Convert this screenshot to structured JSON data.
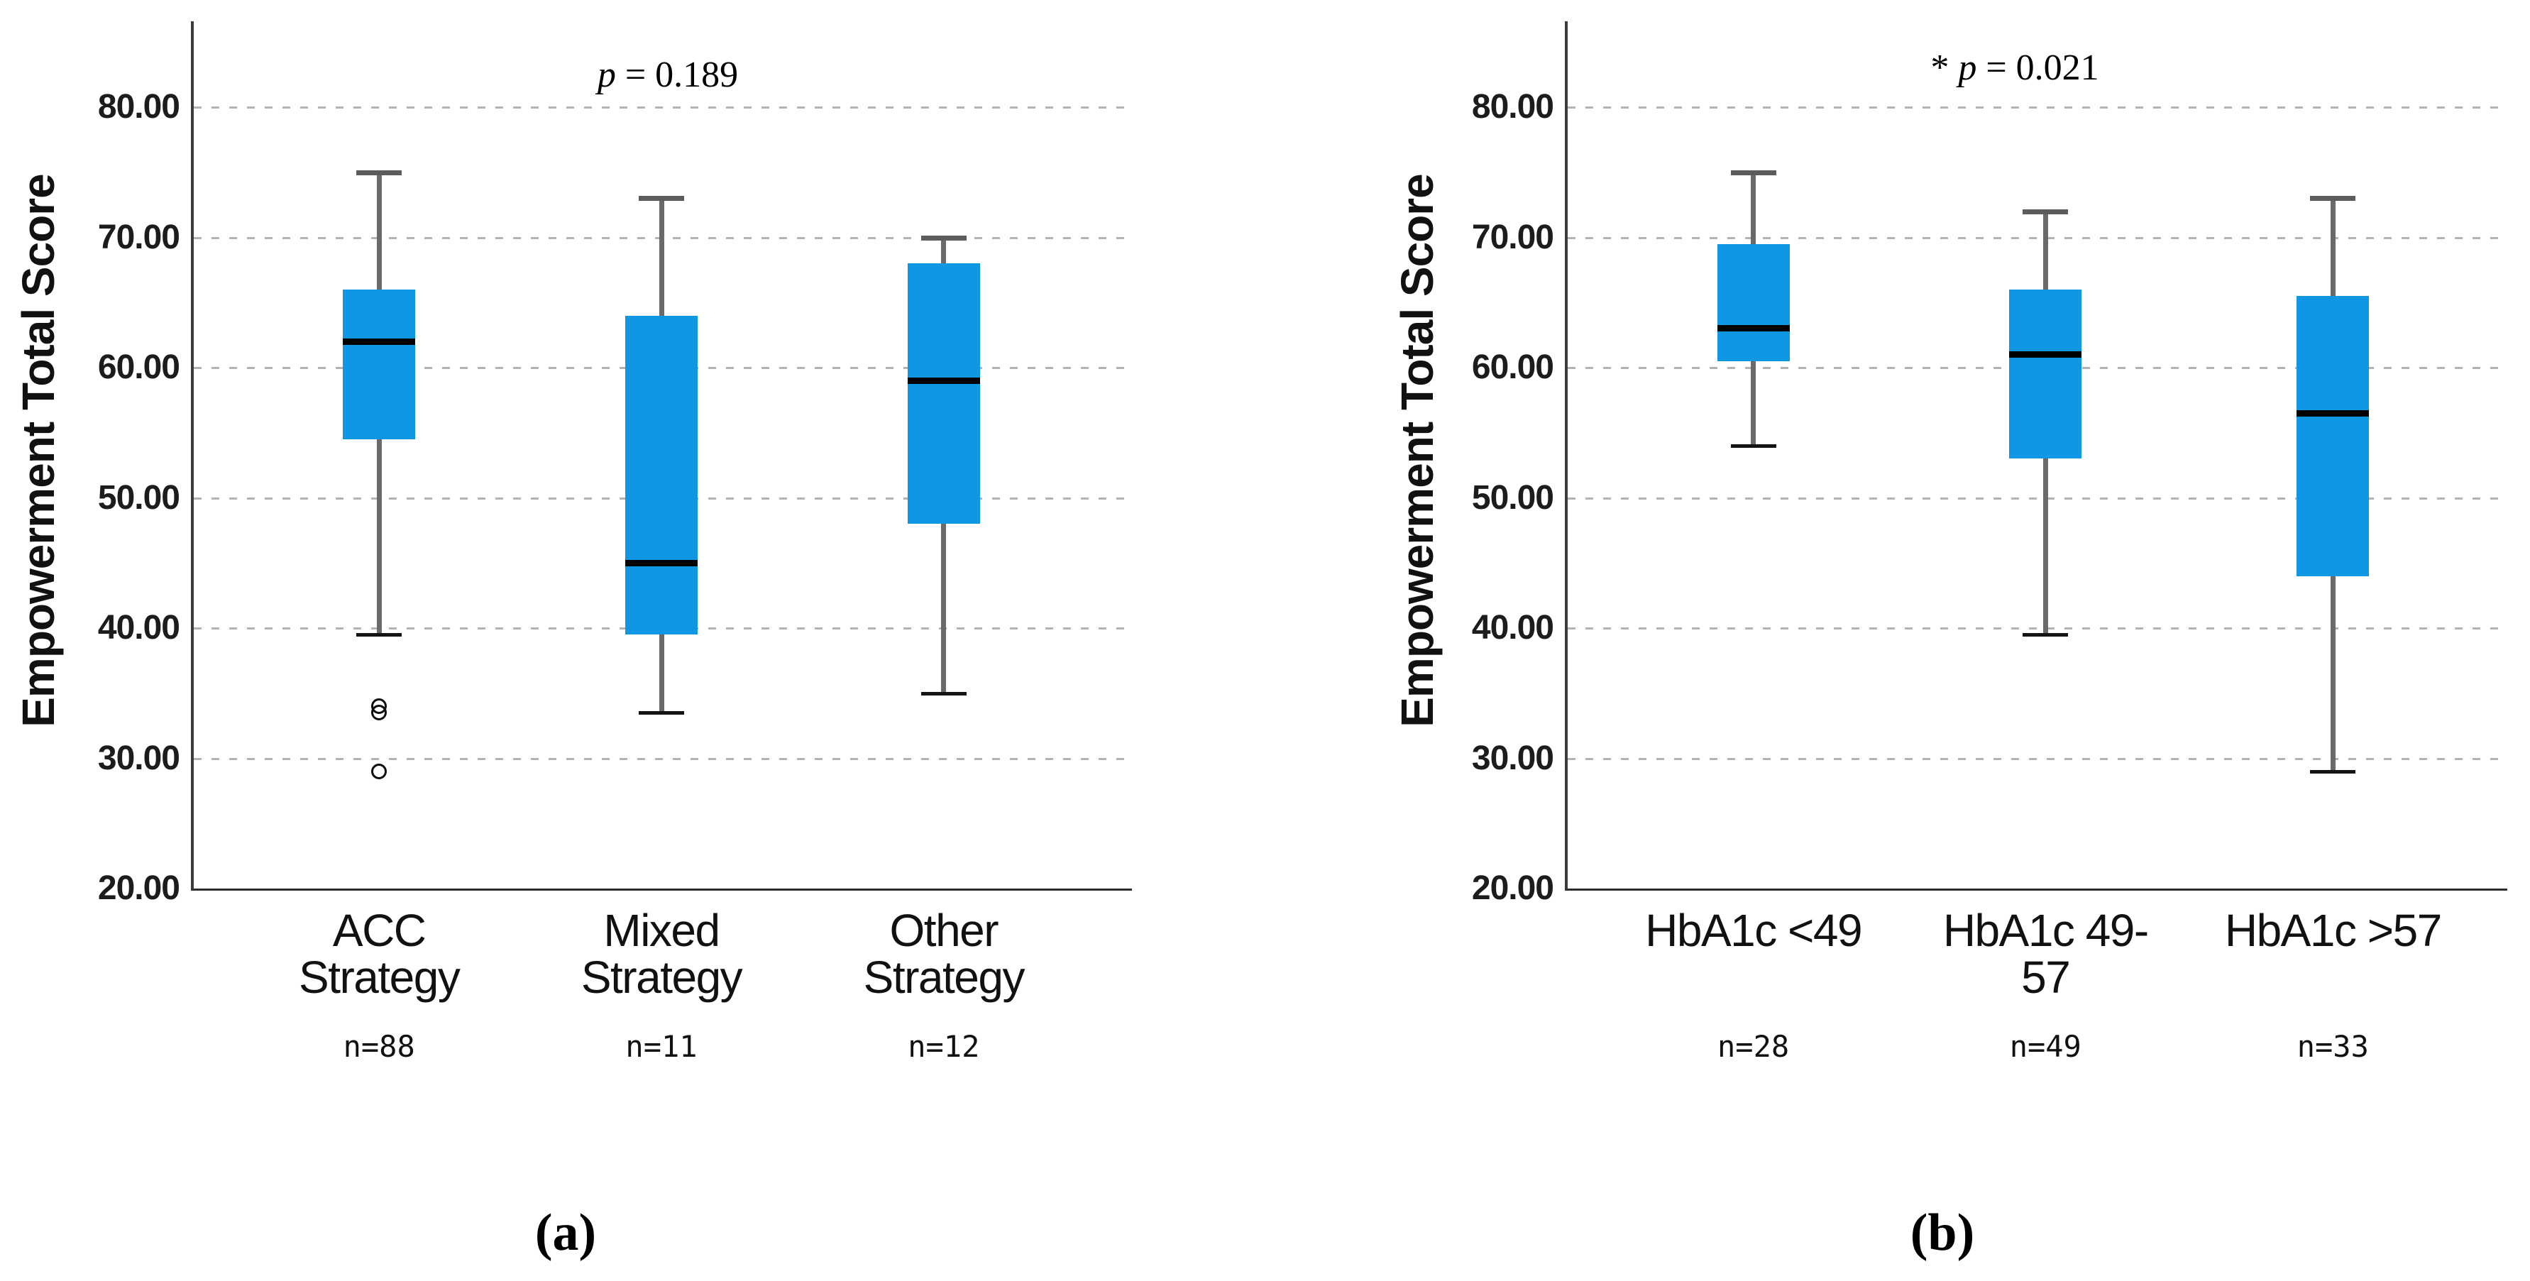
{
  "figure": {
    "captions": {
      "a": "(a)",
      "b": "(b)"
    }
  },
  "colors": {
    "box_fill": "#0f97e3",
    "median": "#000000",
    "whisker_stem": "#6a6a6a",
    "whisker_cap_top": "#5c5c5c",
    "whisker_cap_bottom": "#141414",
    "gridline": "#b3b3b3",
    "axis": "#3c3c3c",
    "text": "#141414"
  },
  "chart_data": [
    {
      "type": "box",
      "panel": "a",
      "ylabel": "Empowerment Total Score",
      "annotation": {
        "star": "",
        "p": "p",
        "rest": " = 0.189"
      },
      "ylim": [
        20,
        86
      ],
      "grid": "horizontal-dashed",
      "legend": null,
      "yticks": [
        {
          "value": 80,
          "label": "80.00"
        },
        {
          "value": 70,
          "label": "70.00"
        },
        {
          "value": 60,
          "label": "60.00"
        },
        {
          "value": 50,
          "label": "50.00"
        },
        {
          "value": 40,
          "label": "40.00"
        },
        {
          "value": 30,
          "label": "30.00"
        },
        {
          "value": 20,
          "label": "20.00"
        }
      ],
      "categories": [
        "ACC Strategy",
        "Mixed Strategy",
        "Other Strategy"
      ],
      "sample_sizes": [
        "n=88",
        "n=11",
        "n=12"
      ],
      "boxes": [
        {
          "category": "ACC Strategy",
          "whisker_low": 39.5,
          "q1": 54.5,
          "median": 62,
          "q3": 66,
          "whisker_high": 75,
          "outliers": [
            34,
            33.5,
            29
          ]
        },
        {
          "category": "Mixed Strategy",
          "whisker_low": 33.5,
          "q1": 39.5,
          "median": 45,
          "q3": 64,
          "whisker_high": 73,
          "outliers": []
        },
        {
          "category": "Other Strategy",
          "whisker_low": 35,
          "q1": 48,
          "median": 59,
          "q3": 68,
          "whisker_high": 70,
          "outliers": []
        }
      ]
    },
    {
      "type": "box",
      "panel": "b",
      "ylabel": "Empowerment Total Score",
      "annotation": {
        "star": "* ",
        "p": "p",
        "rest": " = 0.021"
      },
      "ylim": [
        20,
        86
      ],
      "grid": "horizontal-dashed",
      "legend": null,
      "yticks": [
        {
          "value": 80,
          "label": "80.00"
        },
        {
          "value": 70,
          "label": "70.00"
        },
        {
          "value": 60,
          "label": "60.00"
        },
        {
          "value": 50,
          "label": "50.00"
        },
        {
          "value": 40,
          "label": "40.00"
        },
        {
          "value": 30,
          "label": "30.00"
        },
        {
          "value": 20,
          "label": "20.00"
        }
      ],
      "categories": [
        "HbA1c <49",
        "HbA1c 49-57",
        "HbA1c >57"
      ],
      "sample_sizes": [
        "n=28",
        "n=49",
        "n=33"
      ],
      "boxes": [
        {
          "category": "HbA1c <49",
          "whisker_low": 54,
          "q1": 60.5,
          "median": 63,
          "q3": 69.5,
          "whisker_high": 75,
          "outliers": []
        },
        {
          "category": "HbA1c 49-57",
          "whisker_low": 39.5,
          "q1": 53,
          "median": 61,
          "q3": 66,
          "whisker_high": 72,
          "outliers": []
        },
        {
          "category": "HbA1c >57",
          "whisker_low": 29,
          "q1": 44,
          "median": 56.5,
          "q3": 65.5,
          "whisker_high": 73,
          "outliers": []
        }
      ]
    }
  ]
}
